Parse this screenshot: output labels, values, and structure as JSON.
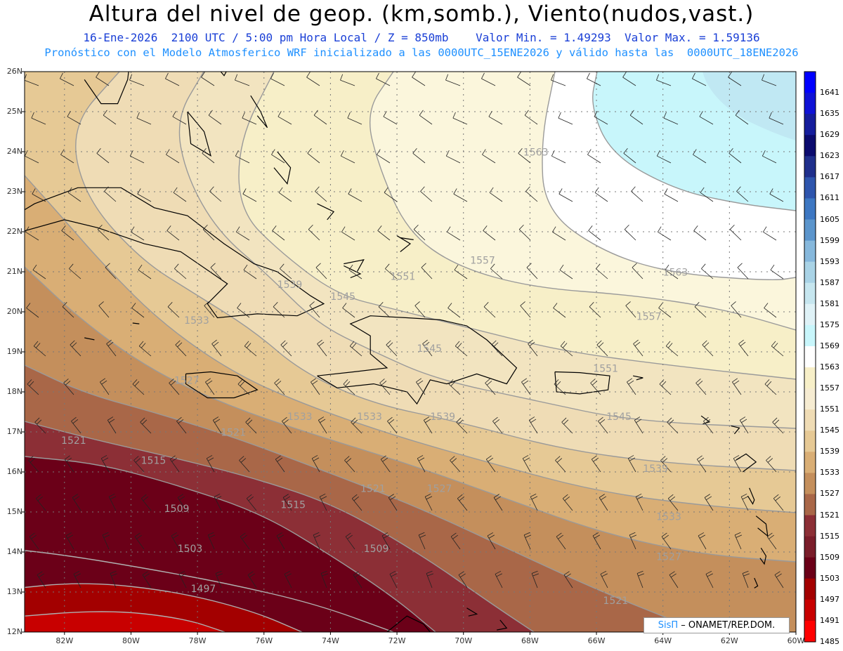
{
  "header": {
    "title": "Altura del nivel de geop. (km,somb.), Viento(nudos,vast.)",
    "line1": "16-Ene-2026  2100 UTC / 5:00 pm Hora Local / Z = 850mb    Valor Min. = 1.49293  Valor Max. = 1.59136",
    "line2": "Pronóstico con el Modelo Atmosferico WRF inicializado a las 0000UTC_15ENE2026 y válido hasta las  0000UTC_18ENE2026"
  },
  "axes": {
    "lat_labels": [
      "26N",
      "25N",
      "24N",
      "23N",
      "22N",
      "21N",
      "20N",
      "19N",
      "18N",
      "17N",
      "16N",
      "15N",
      "14N",
      "13N",
      "12N"
    ],
    "lon_labels": [
      "82W",
      "80W",
      "78W",
      "76W",
      "74W",
      "72W",
      "70W",
      "68W",
      "66W",
      "64W",
      "62W",
      "60W"
    ]
  },
  "colorbar": {
    "levels": [
      "1641",
      "1635",
      "1629",
      "1623",
      "1617",
      "1611",
      "1605",
      "1599",
      "1593",
      "1587",
      "1581",
      "1575",
      "1569",
      "1563",
      "1557",
      "1551",
      "1545",
      "1539",
      "1533",
      "1527",
      "1521",
      "1515",
      "1509",
      "1503",
      "1497",
      "1491",
      "1485"
    ],
    "colors": [
      "#0000ff",
      "#0f12d6",
      "#151d9c",
      "#0b0b6e",
      "#1f2f8c",
      "#2e55ad",
      "#3d77c2",
      "#5b95cc",
      "#86b8dc",
      "#a9d3e6",
      "#c6e6ef",
      "#dff2f7",
      "#c8f6fb",
      "#ffffff",
      "#f7efc8",
      "#f6ecd2",
      "#efdcb5",
      "#e6c995",
      "#d9ae75",
      "#c48f5c",
      "#a96748",
      "#8c2f36",
      "#7a1d2a",
      "#6b0018",
      "#a30000",
      "#c80000",
      "#ff0000"
    ]
  },
  "contour_labels": [
    {
      "text": "1563",
      "lon": -68.2,
      "lat": 23.9
    },
    {
      "text": "1557",
      "lon": -69.8,
      "lat": 21.2
    },
    {
      "text": "1551",
      "lon": -72.2,
      "lat": 20.8
    },
    {
      "text": "1539",
      "lon": -75.6,
      "lat": 20.6
    },
    {
      "text": "1545",
      "lon": -74.0,
      "lat": 20.3
    },
    {
      "text": "1533",
      "lon": -78.4,
      "lat": 19.7
    },
    {
      "text": "1545",
      "lon": -71.4,
      "lat": 19.0
    },
    {
      "text": "1563",
      "lon": -64.0,
      "lat": 20.9
    },
    {
      "text": "1557",
      "lon": -64.8,
      "lat": 19.8
    },
    {
      "text": "1551",
      "lon": -66.1,
      "lat": 18.5
    },
    {
      "text": "1527",
      "lon": -78.7,
      "lat": 18.2
    },
    {
      "text": "1533",
      "lon": -75.3,
      "lat": 17.3
    },
    {
      "text": "1533",
      "lon": -73.2,
      "lat": 17.3
    },
    {
      "text": "1539",
      "lon": -71.0,
      "lat": 17.3
    },
    {
      "text": "1545",
      "lon": -65.7,
      "lat": 17.3
    },
    {
      "text": "1521",
      "lon": -77.3,
      "lat": 16.9
    },
    {
      "text": "1521",
      "lon": -82.1,
      "lat": 16.7
    },
    {
      "text": "1515",
      "lon": -79.7,
      "lat": 16.2
    },
    {
      "text": "1539",
      "lon": -64.6,
      "lat": 16.0
    },
    {
      "text": "1521",
      "lon": -73.1,
      "lat": 15.5
    },
    {
      "text": "1527",
      "lon": -71.1,
      "lat": 15.5
    },
    {
      "text": "1509",
      "lon": -79.0,
      "lat": 15.0
    },
    {
      "text": "1515",
      "lon": -75.5,
      "lat": 15.1
    },
    {
      "text": "1533",
      "lon": -64.2,
      "lat": 14.8
    },
    {
      "text": "1509",
      "lon": -73.0,
      "lat": 14.0
    },
    {
      "text": "1503",
      "lon": -78.6,
      "lat": 14.0
    },
    {
      "text": "1527",
      "lon": -64.2,
      "lat": 13.8
    },
    {
      "text": "1497",
      "lon": -78.2,
      "lat": 13.0
    },
    {
      "text": "1521",
      "lon": -65.8,
      "lat": 12.7
    }
  ],
  "credit": {
    "sis": "SisΠ",
    "rest": "– ONAMET/REP.DOM."
  }
}
